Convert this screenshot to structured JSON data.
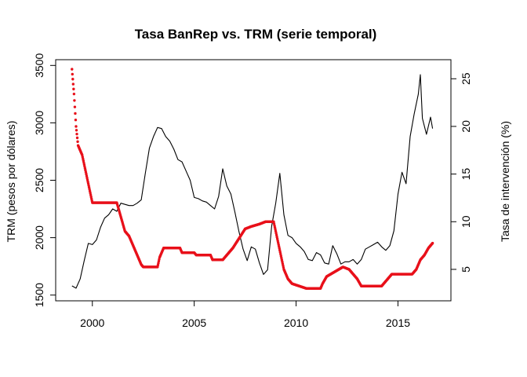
{
  "chart_data": {
    "type": "line",
    "title": "Tasa BanRep vs. TRM (serie temporal)",
    "xlabel": "",
    "ylabel": "TRM (pesos por dólares)",
    "ylabel_right": "Tasa de intervención (%)",
    "xlim": [
      1998.2,
      2017.6
    ],
    "ylim": [
      1450,
      3550
    ],
    "ylim_right": [
      1.7,
      27.0
    ],
    "x_ticks": [
      2000,
      2005,
      2010,
      2015
    ],
    "y_ticks": [
      1500,
      2000,
      2500,
      3000,
      3500
    ],
    "y_ticks_right": [
      5,
      10,
      15,
      20,
      25
    ],
    "grid": false,
    "legend": "none",
    "series": [
      {
        "axis": "left",
        "style": "line",
        "color": "#000000",
        "points": [
          [
            1999.0,
            1580
          ],
          [
            1999.2,
            1560
          ],
          [
            1999.4,
            1640
          ],
          [
            1999.6,
            1800
          ],
          [
            1999.8,
            1950
          ],
          [
            2000.0,
            1940
          ],
          [
            2000.2,
            1980
          ],
          [
            2000.4,
            2090
          ],
          [
            2000.6,
            2170
          ],
          [
            2000.8,
            2200
          ],
          [
            2001.0,
            2250
          ],
          [
            2001.2,
            2230
          ],
          [
            2001.4,
            2300
          ],
          [
            2001.6,
            2290
          ],
          [
            2001.8,
            2280
          ],
          [
            2002.0,
            2280
          ],
          [
            2002.2,
            2300
          ],
          [
            2002.4,
            2330
          ],
          [
            2002.6,
            2560
          ],
          [
            2002.8,
            2780
          ],
          [
            2003.0,
            2880
          ],
          [
            2003.2,
            2960
          ],
          [
            2003.4,
            2950
          ],
          [
            2003.6,
            2880
          ],
          [
            2003.8,
            2840
          ],
          [
            2004.0,
            2770
          ],
          [
            2004.2,
            2680
          ],
          [
            2004.4,
            2660
          ],
          [
            2004.6,
            2580
          ],
          [
            2004.8,
            2500
          ],
          [
            2005.0,
            2350
          ],
          [
            2005.2,
            2340
          ],
          [
            2005.4,
            2320
          ],
          [
            2005.6,
            2310
          ],
          [
            2005.8,
            2280
          ],
          [
            2006.0,
            2250
          ],
          [
            2006.2,
            2360
          ],
          [
            2006.4,
            2600
          ],
          [
            2006.6,
            2450
          ],
          [
            2006.8,
            2380
          ],
          [
            2007.0,
            2220
          ],
          [
            2007.2,
            2050
          ],
          [
            2007.4,
            1900
          ],
          [
            2007.6,
            1800
          ],
          [
            2007.8,
            1920
          ],
          [
            2008.0,
            1900
          ],
          [
            2008.2,
            1780
          ],
          [
            2008.4,
            1680
          ],
          [
            2008.6,
            1720
          ],
          [
            2008.8,
            2100
          ],
          [
            2009.0,
            2300
          ],
          [
            2009.2,
            2560
          ],
          [
            2009.4,
            2200
          ],
          [
            2009.6,
            2020
          ],
          [
            2009.8,
            2000
          ],
          [
            2010.0,
            1950
          ],
          [
            2010.2,
            1920
          ],
          [
            2010.4,
            1880
          ],
          [
            2010.6,
            1810
          ],
          [
            2010.8,
            1800
          ],
          [
            2011.0,
            1870
          ],
          [
            2011.2,
            1850
          ],
          [
            2011.4,
            1780
          ],
          [
            2011.6,
            1770
          ],
          [
            2011.8,
            1930
          ],
          [
            2012.0,
            1860
          ],
          [
            2012.2,
            1770
          ],
          [
            2012.4,
            1790
          ],
          [
            2012.6,
            1790
          ],
          [
            2012.8,
            1810
          ],
          [
            2013.0,
            1770
          ],
          [
            2013.2,
            1810
          ],
          [
            2013.4,
            1900
          ],
          [
            2013.6,
            1920
          ],
          [
            2013.8,
            1940
          ],
          [
            2014.0,
            1960
          ],
          [
            2014.2,
            1920
          ],
          [
            2014.4,
            1890
          ],
          [
            2014.6,
            1930
          ],
          [
            2014.8,
            2060
          ],
          [
            2015.0,
            2380
          ],
          [
            2015.2,
            2570
          ],
          [
            2015.4,
            2470
          ],
          [
            2015.6,
            2880
          ],
          [
            2015.8,
            3080
          ],
          [
            2016.0,
            3250
          ],
          [
            2016.1,
            3420
          ],
          [
            2016.2,
            3040
          ],
          [
            2016.4,
            2900
          ],
          [
            2016.6,
            3050
          ],
          [
            2016.7,
            2950
          ]
        ]
      },
      {
        "axis": "right",
        "style": "points",
        "color": "#e8101a",
        "points": [
          [
            1999.0,
            26.0
          ],
          [
            1999.1,
            23.4
          ],
          [
            1999.2,
            20.0
          ],
          [
            1999.3,
            18.0
          ],
          [
            1999.5,
            17.0
          ],
          [
            1999.7,
            15.0
          ],
          [
            1999.9,
            13.0
          ],
          [
            2000.0,
            12.0
          ],
          [
            2001.2,
            12.0
          ],
          [
            2001.4,
            10.5
          ],
          [
            2001.6,
            9.0
          ],
          [
            2001.8,
            8.5
          ],
          [
            2002.0,
            7.5
          ],
          [
            2002.2,
            6.5
          ],
          [
            2002.4,
            5.5
          ],
          [
            2002.5,
            5.25
          ],
          [
            2003.2,
            5.25
          ],
          [
            2003.3,
            6.25
          ],
          [
            2003.5,
            7.25
          ],
          [
            2004.3,
            7.25
          ],
          [
            2004.4,
            6.75
          ],
          [
            2005.0,
            6.75
          ],
          [
            2005.1,
            6.5
          ],
          [
            2005.8,
            6.5
          ],
          [
            2005.9,
            6.0
          ],
          [
            2006.4,
            6.0
          ],
          [
            2006.6,
            6.5
          ],
          [
            2006.9,
            7.25
          ],
          [
            2007.2,
            8.25
          ],
          [
            2007.5,
            9.25
          ],
          [
            2007.8,
            9.5
          ],
          [
            2008.2,
            9.75
          ],
          [
            2008.5,
            10.0
          ],
          [
            2008.9,
            10.0
          ],
          [
            2009.0,
            9.0
          ],
          [
            2009.2,
            7.0
          ],
          [
            2009.4,
            5.0
          ],
          [
            2009.6,
            4.0
          ],
          [
            2009.8,
            3.5
          ],
          [
            2010.5,
            3.0
          ],
          [
            2011.2,
            3.0
          ],
          [
            2011.3,
            3.5
          ],
          [
            2011.5,
            4.25
          ],
          [
            2011.9,
            4.75
          ],
          [
            2012.3,
            5.25
          ],
          [
            2012.6,
            5.0
          ],
          [
            2012.8,
            4.5
          ],
          [
            2013.0,
            4.0
          ],
          [
            2013.2,
            3.25
          ],
          [
            2014.2,
            3.25
          ],
          [
            2014.4,
            3.75
          ],
          [
            2014.6,
            4.25
          ],
          [
            2014.7,
            4.5
          ],
          [
            2015.7,
            4.5
          ],
          [
            2015.9,
            5.0
          ],
          [
            2016.1,
            6.0
          ],
          [
            2016.3,
            6.5
          ],
          [
            2016.5,
            7.25
          ],
          [
            2016.7,
            7.75
          ]
        ]
      }
    ]
  }
}
